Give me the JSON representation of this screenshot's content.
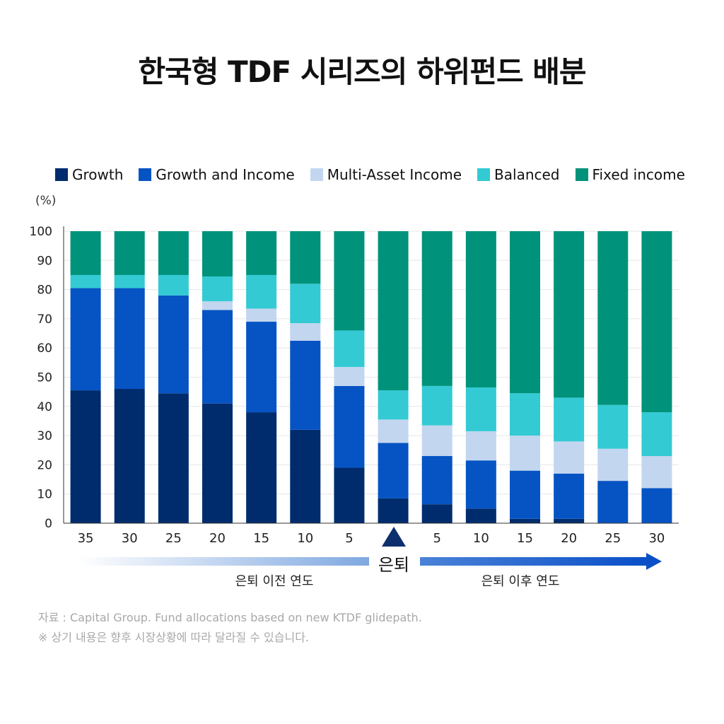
{
  "title": "한국형 TDF 시리즈의 하위펀드 배분",
  "legend": [
    {
      "name": "Growth",
      "color": "#002c6e"
    },
    {
      "name": "Growth and Income",
      "color": "#0654c4"
    },
    {
      "name": "Multi-Asset Income",
      "color": "#c3d6ef"
    },
    {
      "name": "Balanced",
      "color": "#33cad4"
    },
    {
      "name": "Fixed income",
      "color": "#00927a"
    }
  ],
  "unit_label": "(%)",
  "retire_label": "은퇴",
  "before_label": "은퇴 이전 연도",
  "after_label": "은퇴 이후 연도",
  "source": "자료 : Capital Group. Fund allocations based on new KTDF glidepath.",
  "note": "※ 상기 내용은 향후 시장상황에 따라 달라질 수 있습니다.",
  "chart_data": {
    "type": "bar",
    "stacked": true,
    "categories": [
      "35",
      "30",
      "25",
      "20",
      "15",
      "10",
      "5",
      "",
      "5",
      "10",
      "15",
      "20",
      "25",
      "30"
    ],
    "ylim": [
      0,
      100
    ],
    "yticks": [
      0,
      10,
      20,
      30,
      40,
      50,
      60,
      70,
      80,
      90,
      100
    ],
    "grid": true,
    "legend_position": "top",
    "series": [
      {
        "name": "Growth",
        "color": "#002c6e",
        "values": [
          45.5,
          46,
          44.5,
          41,
          38,
          32,
          19,
          8.5,
          6.5,
          5,
          1.5,
          1.5,
          0,
          0
        ]
      },
      {
        "name": "Growth and Income",
        "color": "#0654c4",
        "values": [
          35,
          34.5,
          33.5,
          32,
          31,
          30.5,
          28,
          19,
          16.5,
          16.5,
          16.5,
          15.5,
          14.5,
          12
        ]
      },
      {
        "name": "Multi-Asset Income",
        "color": "#c3d6ef",
        "values": [
          0,
          0,
          0,
          3,
          4.5,
          6,
          6.5,
          8,
          10.5,
          10,
          12,
          11,
          11,
          11
        ]
      },
      {
        "name": "Balanced",
        "color": "#33cad4",
        "values": [
          4.5,
          4.5,
          7,
          8.5,
          11.5,
          13.5,
          12.5,
          10,
          13.5,
          15,
          14.5,
          15,
          15,
          15
        ]
      },
      {
        "name": "Fixed income",
        "color": "#00927a",
        "values": [
          15,
          15,
          15,
          15.5,
          15,
          18,
          34,
          54.5,
          53,
          53.5,
          55.5,
          57,
          59.5,
          62
        ]
      }
    ]
  }
}
